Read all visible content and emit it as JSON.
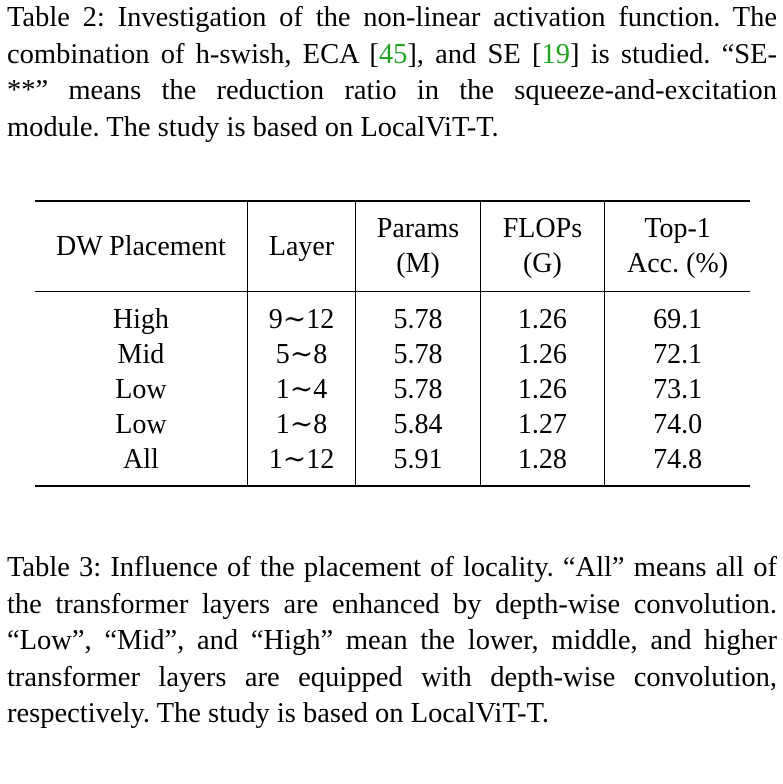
{
  "table2_caption": {
    "prefix": "Table 2: Investigation of the non-linear activation function. The combination of h-swish, ECA [",
    "cite1": "45",
    "mid": "], and SE [",
    "cite2": "19",
    "suffix": "] is studied. “SE-**” means the reduction ratio in the squeeze-and-excitation module. The study is based on LocalViT-T."
  },
  "table": {
    "headers": [
      {
        "line1": "DW Placement",
        "line2": ""
      },
      {
        "line1": "Layer",
        "line2": ""
      },
      {
        "line1": "Params",
        "line2": "(M)"
      },
      {
        "line1": "FLOPs",
        "line2": "(G)"
      },
      {
        "line1": "Top-1",
        "line2": "Acc. (%)"
      }
    ],
    "rows": [
      [
        "High",
        "9∼12",
        "5.78",
        "1.26",
        "69.1"
      ],
      [
        "Mid",
        "5∼8",
        "5.78",
        "1.26",
        "72.1"
      ],
      [
        "Low",
        "1∼4",
        "5.78",
        "1.26",
        "73.1"
      ],
      [
        "Low",
        "1∼8",
        "5.84",
        "1.27",
        "74.0"
      ],
      [
        "All",
        "1∼12",
        "5.91",
        "1.28",
        "74.8"
      ]
    ]
  },
  "table3_caption": "Table 3: Influence of the placement of locality. “All” means all of the transformer layers are enhanced by depth-wise convolution. “Low”, “Mid”, and “High” mean the lower, middle, and higher transformer layers are equipped with depth-wise convolution, respectively. The study is based on LocalViT-T.",
  "colors": {
    "citation_link": "#22a322",
    "text": "#000000"
  }
}
